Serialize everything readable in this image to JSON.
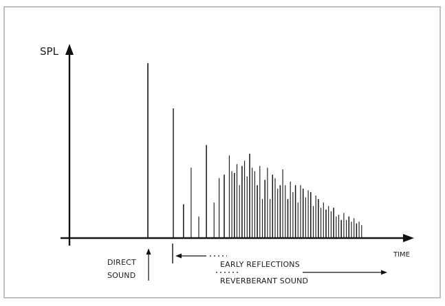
{
  "diagram": {
    "y_axis_label": "SPL",
    "x_axis_label": "TIME",
    "direct_sound_label_line1": "DIRECT",
    "direct_sound_label_line2": "SOUND",
    "early_reflections_label": "EARLY REFLECTIONS",
    "reverberant_sound_label": "REVERBERANT SOUND",
    "frame_color": "#bfbfbf",
    "line_color": "#111111"
  },
  "chart_data": {
    "type": "impulse-response",
    "description_labels": [
      "SPL",
      "TIME",
      "DIRECT SOUND",
      "EARLY REFLECTIONS",
      "REVERBERANT SOUND"
    ],
    "direct_sound": {
      "time": 0.0,
      "level": 1.0
    },
    "first_reflection": {
      "time": 0.1,
      "level": 0.74
    },
    "reflections": [
      {
        "t": 0.14,
        "v": 0.19
      },
      {
        "t": 0.17,
        "v": 0.4
      },
      {
        "t": 0.2,
        "v": 0.12
      },
      {
        "t": 0.23,
        "v": 0.53
      },
      {
        "t": 0.26,
        "v": 0.2
      },
      {
        "t": 0.28,
        "v": 0.34
      },
      {
        "t": 0.3,
        "v": 0.36
      },
      {
        "t": 0.32,
        "v": 0.47
      },
      {
        "t": 0.33,
        "v": 0.38
      },
      {
        "t": 0.34,
        "v": 0.37
      },
      {
        "t": 0.35,
        "v": 0.42
      },
      {
        "t": 0.36,
        "v": 0.3
      },
      {
        "t": 0.37,
        "v": 0.41
      },
      {
        "t": 0.38,
        "v": 0.44
      },
      {
        "t": 0.39,
        "v": 0.35
      },
      {
        "t": 0.4,
        "v": 0.48
      },
      {
        "t": 0.41,
        "v": 0.4
      },
      {
        "t": 0.42,
        "v": 0.38
      },
      {
        "t": 0.43,
        "v": 0.3
      },
      {
        "t": 0.44,
        "v": 0.41
      },
      {
        "t": 0.45,
        "v": 0.22
      },
      {
        "t": 0.46,
        "v": 0.33
      },
      {
        "t": 0.47,
        "v": 0.4
      },
      {
        "t": 0.48,
        "v": 0.22
      },
      {
        "t": 0.49,
        "v": 0.36
      },
      {
        "t": 0.5,
        "v": 0.34
      },
      {
        "t": 0.51,
        "v": 0.28
      },
      {
        "t": 0.52,
        "v": 0.3
      },
      {
        "t": 0.53,
        "v": 0.39
      },
      {
        "t": 0.54,
        "v": 0.3
      },
      {
        "t": 0.55,
        "v": 0.22
      },
      {
        "t": 0.56,
        "v": 0.32
      },
      {
        "t": 0.57,
        "v": 0.26
      },
      {
        "t": 0.58,
        "v": 0.3
      },
      {
        "t": 0.59,
        "v": 0.2
      },
      {
        "t": 0.6,
        "v": 0.3
      },
      {
        "t": 0.61,
        "v": 0.28
      },
      {
        "t": 0.62,
        "v": 0.23
      },
      {
        "t": 0.63,
        "v": 0.27
      },
      {
        "t": 0.64,
        "v": 0.26
      },
      {
        "t": 0.65,
        "v": 0.18
      },
      {
        "t": 0.66,
        "v": 0.24
      },
      {
        "t": 0.67,
        "v": 0.22
      },
      {
        "t": 0.68,
        "v": 0.17
      },
      {
        "t": 0.69,
        "v": 0.2
      },
      {
        "t": 0.7,
        "v": 0.16
      },
      {
        "t": 0.71,
        "v": 0.18
      },
      {
        "t": 0.72,
        "v": 0.15
      },
      {
        "t": 0.73,
        "v": 0.17
      },
      {
        "t": 0.74,
        "v": 0.12
      },
      {
        "t": 0.75,
        "v": 0.13
      },
      {
        "t": 0.76,
        "v": 0.1
      },
      {
        "t": 0.77,
        "v": 0.14
      },
      {
        "t": 0.78,
        "v": 0.1
      },
      {
        "t": 0.79,
        "v": 0.12
      },
      {
        "t": 0.8,
        "v": 0.09
      },
      {
        "t": 0.81,
        "v": 0.11
      },
      {
        "t": 0.82,
        "v": 0.08
      },
      {
        "t": 0.83,
        "v": 0.09
      },
      {
        "t": 0.84,
        "v": 0.07
      }
    ]
  }
}
